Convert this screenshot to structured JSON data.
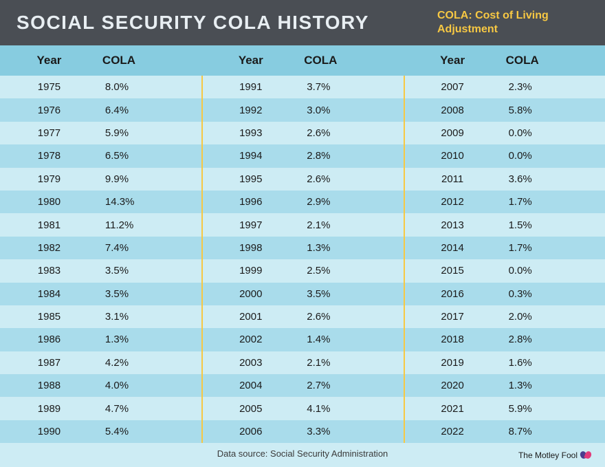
{
  "header": {
    "title": "SOCIAL SECURITY COLA HISTORY",
    "subtitle": "COLA: Cost of Living Adjustment"
  },
  "colors": {
    "header_bg": "#4a4e54",
    "header_text": "#e8eef2",
    "accent": "#f7c843",
    "row_header_bg": "#87cce0",
    "row_even_bg": "#cdecf4",
    "row_odd_bg": "#a9dceb",
    "text": "#1a1a1a",
    "divider": "#f7c843"
  },
  "table": {
    "type": "table",
    "column_headers": {
      "year": "Year",
      "cola": "COLA"
    },
    "columns": [
      [
        {
          "year": "1975",
          "cola": "8.0%"
        },
        {
          "year": "1976",
          "cola": "6.4%"
        },
        {
          "year": "1977",
          "cola": "5.9%"
        },
        {
          "year": "1978",
          "cola": "6.5%"
        },
        {
          "year": "1979",
          "cola": "9.9%"
        },
        {
          "year": "1980",
          "cola": "14.3%"
        },
        {
          "year": "1981",
          "cola": "11.2%"
        },
        {
          "year": "1982",
          "cola": "7.4%"
        },
        {
          "year": "1983",
          "cola": "3.5%"
        },
        {
          "year": "1984",
          "cola": "3.5%"
        },
        {
          "year": "1985",
          "cola": "3.1%"
        },
        {
          "year": "1986",
          "cola": "1.3%"
        },
        {
          "year": "1987",
          "cola": "4.2%"
        },
        {
          "year": "1988",
          "cola": "4.0%"
        },
        {
          "year": "1989",
          "cola": "4.7%"
        },
        {
          "year": "1990",
          "cola": "5.4%"
        }
      ],
      [
        {
          "year": "1991",
          "cola": "3.7%"
        },
        {
          "year": "1992",
          "cola": "3.0%"
        },
        {
          "year": "1993",
          "cola": "2.6%"
        },
        {
          "year": "1994",
          "cola": "2.8%"
        },
        {
          "year": "1995",
          "cola": "2.6%"
        },
        {
          "year": "1996",
          "cola": "2.9%"
        },
        {
          "year": "1997",
          "cola": "2.1%"
        },
        {
          "year": "1998",
          "cola": "1.3%"
        },
        {
          "year": "1999",
          "cola": "2.5%"
        },
        {
          "year": "2000",
          "cola": "3.5%"
        },
        {
          "year": "2001",
          "cola": "2.6%"
        },
        {
          "year": "2002",
          "cola": "1.4%"
        },
        {
          "year": "2003",
          "cola": "2.1%"
        },
        {
          "year": "2004",
          "cola": "2.7%"
        },
        {
          "year": "2005",
          "cola": "4.1%"
        },
        {
          "year": "2006",
          "cola": "3.3%"
        }
      ],
      [
        {
          "year": "2007",
          "cola": "2.3%"
        },
        {
          "year": "2008",
          "cola": "5.8%"
        },
        {
          "year": "2009",
          "cola": "0.0%"
        },
        {
          "year": "2010",
          "cola": "0.0%"
        },
        {
          "year": "2011",
          "cola": "3.6%"
        },
        {
          "year": "2012",
          "cola": "1.7%"
        },
        {
          "year": "2013",
          "cola": "1.5%"
        },
        {
          "year": "2014",
          "cola": "1.7%"
        },
        {
          "year": "2015",
          "cola": "0.0%"
        },
        {
          "year": "2016",
          "cola": "0.3%"
        },
        {
          "year": "2017",
          "cola": "2.0%"
        },
        {
          "year": "2018",
          "cola": "2.8%"
        },
        {
          "year": "2019",
          "cola": "1.6%"
        },
        {
          "year": "2020",
          "cola": "1.3%"
        },
        {
          "year": "2021",
          "cola": "5.9%"
        },
        {
          "year": "2022",
          "cola": "8.7%"
        }
      ]
    ]
  },
  "footer": {
    "source": "Data source: Social Security Administration",
    "brand": "The Motley Fool"
  }
}
